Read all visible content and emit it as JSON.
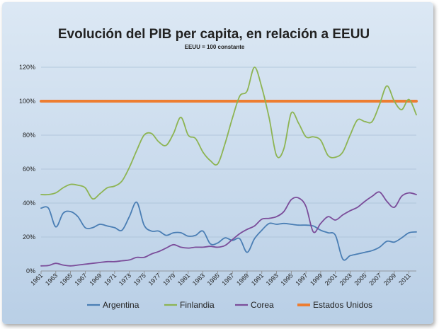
{
  "chart_data": {
    "type": "line",
    "title": "Evolución del PIB per capita, en relación a EEUU",
    "subtitle": "EEUU = 100 constante",
    "xlabel": "",
    "ylabel": "",
    "ylim": [
      0,
      1.2
    ],
    "y_ticks": [
      "0%",
      "20%",
      "40%",
      "60%",
      "80%",
      "100%",
      "120%"
    ],
    "y_tick_values": [
      0,
      0.2,
      0.4,
      0.6,
      0.8,
      1.0,
      1.2
    ],
    "x_tick_labels": [
      "1961",
      "1963",
      "1965",
      "1967",
      "1969",
      "1971",
      "1973",
      "1975",
      "1977",
      "1979",
      "1981",
      "1983",
      "1985",
      "1987",
      "1989",
      "1991",
      "1993",
      "1995",
      "1997",
      "1999",
      "2001",
      "2003",
      "2005",
      "2007",
      "2009",
      "2011"
    ],
    "grid": true,
    "legend_position": "bottom",
    "x": [
      1961,
      1962,
      1963,
      1964,
      1965,
      1966,
      1967,
      1968,
      1969,
      1970,
      1971,
      1972,
      1973,
      1974,
      1975,
      1976,
      1977,
      1978,
      1979,
      1980,
      1981,
      1982,
      1983,
      1984,
      1985,
      1986,
      1987,
      1988,
      1989,
      1990,
      1991,
      1992,
      1993,
      1994,
      1995,
      1996,
      1997,
      1998,
      1999,
      2000,
      2001,
      2002,
      2003,
      2004,
      2005,
      2006,
      2007,
      2008,
      2009,
      2010,
      2011,
      2012
    ],
    "series": [
      {
        "name": "Argentina",
        "color": "#4a7eb4",
        "values": [
          0.37,
          0.37,
          0.26,
          0.34,
          0.35,
          0.32,
          0.255,
          0.255,
          0.275,
          0.265,
          0.255,
          0.24,
          0.32,
          0.405,
          0.27,
          0.235,
          0.235,
          0.21,
          0.225,
          0.225,
          0.205,
          0.21,
          0.235,
          0.16,
          0.165,
          0.195,
          0.18,
          0.19,
          0.11,
          0.19,
          0.24,
          0.28,
          0.275,
          0.28,
          0.275,
          0.27,
          0.27,
          0.265,
          0.24,
          0.225,
          0.21,
          0.07,
          0.09,
          0.1,
          0.11,
          0.12,
          0.14,
          0.175,
          0.17,
          0.195,
          0.225,
          0.23
        ]
      },
      {
        "name": "Finlandia",
        "color": "#8db453",
        "values": [
          0.45,
          0.45,
          0.46,
          0.49,
          0.51,
          0.505,
          0.49,
          0.425,
          0.455,
          0.49,
          0.5,
          0.53,
          0.61,
          0.71,
          0.8,
          0.81,
          0.76,
          0.74,
          0.81,
          0.905,
          0.8,
          0.78,
          0.7,
          0.65,
          0.63,
          0.75,
          0.9,
          1.03,
          1.06,
          1.2,
          1.08,
          0.9,
          0.68,
          0.72,
          0.93,
          0.87,
          0.79,
          0.79,
          0.77,
          0.68,
          0.67,
          0.7,
          0.8,
          0.89,
          0.88,
          0.88,
          0.98,
          1.09,
          1.0,
          0.95,
          1.01,
          0.92
        ]
      },
      {
        "name": "Corea",
        "color": "#7b4d9a",
        "values": [
          0.03,
          0.032,
          0.045,
          0.035,
          0.03,
          0.035,
          0.04,
          0.045,
          0.05,
          0.055,
          0.055,
          0.06,
          0.065,
          0.08,
          0.08,
          0.1,
          0.115,
          0.135,
          0.155,
          0.14,
          0.135,
          0.14,
          0.14,
          0.145,
          0.14,
          0.15,
          0.185,
          0.22,
          0.245,
          0.265,
          0.305,
          0.31,
          0.32,
          0.35,
          0.42,
          0.43,
          0.38,
          0.23,
          0.28,
          0.32,
          0.3,
          0.33,
          0.355,
          0.375,
          0.41,
          0.44,
          0.465,
          0.41,
          0.375,
          0.44,
          0.46,
          0.45
        ]
      },
      {
        "name": "Estados Unidos",
        "color": "#ed7d31",
        "values": [
          1.0,
          1.0,
          1.0,
          1.0,
          1.0,
          1.0,
          1.0,
          1.0,
          1.0,
          1.0,
          1.0,
          1.0,
          1.0,
          1.0,
          1.0,
          1.0,
          1.0,
          1.0,
          1.0,
          1.0,
          1.0,
          1.0,
          1.0,
          1.0,
          1.0,
          1.0,
          1.0,
          1.0,
          1.0,
          1.0,
          1.0,
          1.0,
          1.0,
          1.0,
          1.0,
          1.0,
          1.0,
          1.0,
          1.0,
          1.0,
          1.0,
          1.0,
          1.0,
          1.0,
          1.0,
          1.0,
          1.0,
          1.0,
          1.0,
          1.0,
          1.0,
          1.0
        ]
      }
    ]
  }
}
